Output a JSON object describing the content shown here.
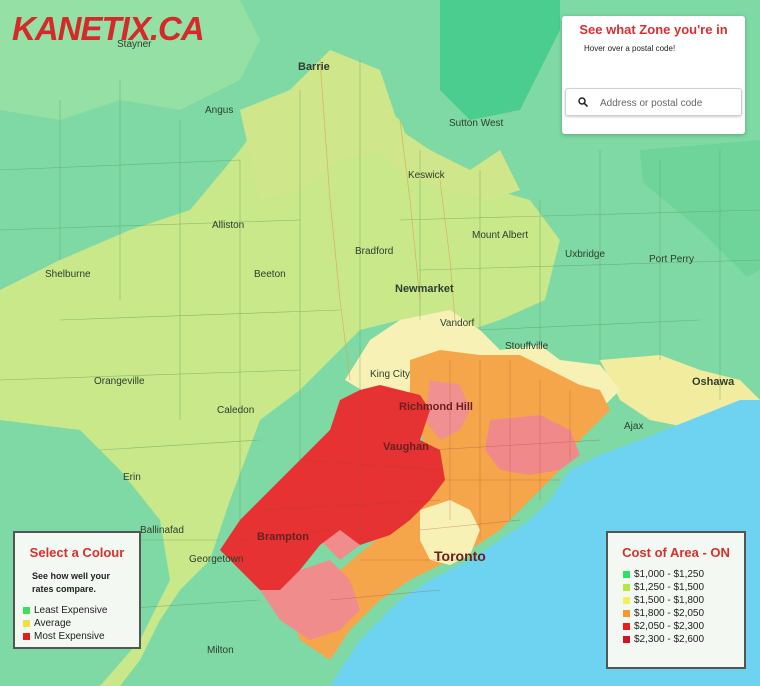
{
  "brand": {
    "logo_text": "KANETIX.CA"
  },
  "zone_finder": {
    "title": "See what Zone you're in",
    "hint": "Hover over a postal code!",
    "search_placeholder": "Address or postal code"
  },
  "map_labels": {
    "barrie": "Barrie",
    "stayner": "Stayner",
    "angus": "Angus",
    "sutton_west": "Sutton West",
    "keswick": "Keswick",
    "alliston": "Alliston",
    "bradford": "Bradford",
    "mount_albert": "Mount Albert",
    "shelburne": "Shelburne",
    "beeton": "Beeton",
    "uxbridge": "Uxbridge",
    "port_perry": "Port Perry",
    "newmarket": "Newmarket",
    "vandorf": "Vandorf",
    "stouffville": "Stouffville",
    "king_city": "King City",
    "orangeville": "Orangeville",
    "caledon": "Caledon",
    "richmond_hill": "Richmond Hill",
    "oshawa": "Oshawa",
    "ajax": "Ajax",
    "vaughan": "Vaughan",
    "erin": "Erin",
    "ballinafad": "Ballinafad",
    "brampton": "Brampton",
    "georgetown": "Georgetown",
    "toronto": "Toronto",
    "milton": "Milton"
  },
  "select_colour": {
    "title": "Select a Colour",
    "subtitle": "See how well your rates compare.",
    "items": [
      {
        "label": "Least Expensive",
        "color": "#3ee05a"
      },
      {
        "label": "Average",
        "color": "#e8e43a"
      },
      {
        "label": "Most Expensive",
        "color": "#e01f1f"
      }
    ]
  },
  "cost_of_area": {
    "title": "Cost of Area - ON",
    "items": [
      {
        "label": "$1,000 - $1,250",
        "color": "#2ee06a"
      },
      {
        "label": "$1,250 - $1,500",
        "color": "#b6e640"
      },
      {
        "label": "$1,500 - $1,800",
        "color": "#f5ee55"
      },
      {
        "label": "$1,800 - $2,050",
        "color": "#f59a28"
      },
      {
        "label": "$2,050 - $2,300",
        "color": "#e51f1f"
      },
      {
        "label": "$2,300 - $2,600",
        "color": "#d6141e"
      }
    ]
  },
  "colors": {
    "lake": "#6ed3f0",
    "low": "#7fd9a4",
    "midlow": "#c8e88a",
    "mid": "#f7f0b0",
    "high": "#f5a64a",
    "veryhigh": "#e63232",
    "pink": "#f08c8c",
    "accent": "#d92f2f"
  }
}
